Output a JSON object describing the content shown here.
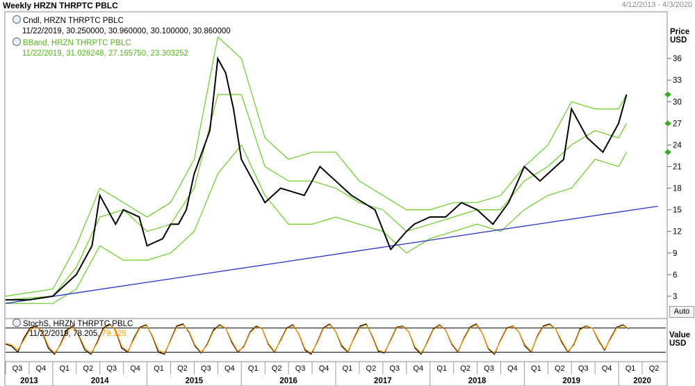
{
  "header": {
    "title": "Weekly HRZN THRPTC PBLC",
    "date_range": "4/12/2013 - 4/3/2020"
  },
  "legend": {
    "candle_label": "Cndl, HRZN THRPTC PBLC",
    "candle_values": "11/22/2019, 30.250000, 30.960000, 30.100000, 30.860000",
    "bband_label": "BBand, HRZN THRPTC PBLC",
    "bband_values": "11/22/2019, 31.028248, 27.165750, 23.303252",
    "stoch_label": "StochS, HRZN THRPTC PBLC",
    "stoch_value_k": "11/22/2019, 78.205,",
    "stoch_value_d": "79.125"
  },
  "price_axis": {
    "title_line1": "Price",
    "title_line2": "USD",
    "auto_label": "Auto"
  },
  "value_axis": {
    "title_line1": "Value",
    "title_line2": "USD"
  },
  "colors": {
    "candle": "#000000",
    "bband": "#66cc22",
    "trendline": "#2233cc",
    "stoch_k": "#000000",
    "stoch_d": "#ff9900",
    "marker": "#33aa22"
  },
  "chart_data": [
    {
      "type": "line",
      "title": "Weekly HRZN THRPTC PBLC",
      "ylabel": "Price USD",
      "ylim": [
        0,
        42
      ],
      "y_ticks": [
        3,
        6,
        9,
        12,
        15,
        18,
        21,
        24,
        27,
        30,
        33,
        36
      ],
      "x_quarter_labels": [
        "Q3",
        "Q4",
        "Q1",
        "Q2",
        "Q3",
        "Q4",
        "Q1",
        "Q2",
        "Q3",
        "Q4",
        "Q1",
        "Q2",
        "Q3",
        "Q4",
        "Q1",
        "Q2",
        "Q3",
        "Q4",
        "Q1",
        "Q2",
        "Q3",
        "Q4",
        "Q1",
        "Q2",
        "Q3",
        "Q4",
        "Q1",
        "Q2"
      ],
      "x_year_labels": [
        "2013",
        "2014",
        "2015",
        "2016",
        "2017",
        "2018",
        "2019",
        "2020"
      ],
      "series": [
        {
          "name": "Cndl",
          "x": [
            "2013-04",
            "2013-07",
            "2013-10",
            "2014-01",
            "2014-03",
            "2014-04",
            "2014-06",
            "2014-07",
            "2014-09",
            "2014-10",
            "2014-12",
            "2015-01",
            "2015-02",
            "2015-03",
            "2015-04",
            "2015-06",
            "2015-07",
            "2015-08",
            "2015-09",
            "2015-10",
            "2015-12",
            "2016-01",
            "2016-03",
            "2016-06",
            "2016-08",
            "2016-10",
            "2016-12",
            "2017-03",
            "2017-05",
            "2017-07",
            "2017-08",
            "2017-10",
            "2017-12",
            "2018-02",
            "2018-04",
            "2018-06",
            "2018-08",
            "2018-10",
            "2018-12",
            "2019-03",
            "2019-04",
            "2019-06",
            "2019-08",
            "2019-10",
            "2019-11"
          ],
          "values": [
            2.5,
            2.5,
            3,
            6,
            10,
            17,
            13,
            15,
            14,
            10,
            11,
            13,
            13,
            15,
            20,
            26,
            36,
            34,
            29,
            22,
            18,
            16,
            18,
            17,
            21,
            19,
            17,
            15,
            9.5,
            12,
            13,
            14,
            14,
            16,
            15,
            13,
            16,
            21,
            19,
            22,
            29,
            25,
            23,
            27,
            31
          ]
        },
        {
          "name": "BBand",
          "x": [
            "2013-04",
            "2013-10",
            "2014-01",
            "2014-04",
            "2014-07",
            "2014-10",
            "2015-01",
            "2015-04",
            "2015-07",
            "2015-10",
            "2016-01",
            "2016-04",
            "2016-07",
            "2016-10",
            "2017-01",
            "2017-04",
            "2017-07",
            "2017-10",
            "2018-01",
            "2018-04",
            "2018-07",
            "2018-10",
            "2019-01",
            "2019-04",
            "2019-07",
            "2019-10",
            "2019-11"
          ],
          "upper": [
            3,
            4,
            10,
            18,
            16,
            14,
            16,
            22,
            39,
            36,
            25,
            22,
            23,
            23,
            19,
            17,
            15,
            15,
            16,
            16,
            17,
            21,
            24,
            30,
            29,
            29,
            31
          ],
          "middle": [
            2.5,
            3,
            7,
            14,
            15,
            12,
            13,
            18,
            31,
            31,
            21,
            19,
            19,
            18,
            16,
            15,
            12,
            13,
            14,
            15,
            15,
            19,
            21,
            24,
            26,
            25,
            27
          ],
          "lower": [
            2,
            2,
            4,
            10,
            8,
            8,
            9,
            12,
            20,
            24,
            17,
            13,
            13,
            14,
            13,
            12,
            9,
            11,
            12,
            13,
            12,
            15,
            17,
            18,
            22,
            21,
            23
          ]
        },
        {
          "name": "Trend",
          "x": [
            "2013-04",
            "2020-03"
          ],
          "values": [
            2,
            15.5
          ]
        }
      ]
    },
    {
      "type": "line",
      "title": "StochS",
      "ylabel": "Value USD",
      "ylim": [
        0,
        100
      ],
      "reference_lines": [
        20,
        80
      ],
      "series": [
        {
          "name": "%K",
          "values": [
            40,
            35,
            20,
            55,
            80,
            85,
            70,
            30,
            15,
            40,
            75,
            85,
            60,
            25,
            15,
            45,
            80,
            90,
            75,
            30,
            20,
            55,
            82,
            88,
            60,
            20,
            15,
            50,
            85,
            90,
            70,
            35,
            18,
            40,
            75,
            88,
            80,
            45,
            20,
            35,
            70,
            85,
            78,
            40,
            20,
            50,
            80,
            88,
            65,
            25,
            15,
            45,
            80,
            90,
            72,
            35,
            20,
            55,
            85,
            90,
            60,
            22,
            18,
            50,
            82,
            85,
            70,
            30,
            15,
            45,
            78,
            88,
            75,
            40,
            20,
            55,
            82,
            90,
            68,
            28,
            15,
            50,
            80,
            85,
            70,
            35,
            20,
            60,
            85,
            90,
            78,
            45,
            20,
            40,
            78,
            85,
            80,
            50,
            25,
            55,
            82,
            88,
            78
          ]
        },
        {
          "name": "%D",
          "values": [
            42,
            38,
            25,
            50,
            75,
            83,
            72,
            35,
            18,
            38,
            70,
            83,
            62,
            30,
            18,
            42,
            76,
            88,
            76,
            35,
            22,
            52,
            80,
            86,
            62,
            25,
            18,
            48,
            82,
            88,
            72,
            38,
            20,
            38,
            72,
            86,
            80,
            48,
            22,
            33,
            68,
            83,
            78,
            42,
            22,
            48,
            78,
            86,
            66,
            28,
            18,
            43,
            78,
            88,
            72,
            38,
            22,
            53,
            82,
            88,
            62,
            25,
            20,
            48,
            80,
            84,
            70,
            33,
            18,
            43,
            76,
            86,
            75,
            42,
            22,
            53,
            80,
            88,
            68,
            30,
            18,
            48,
            78,
            84,
            70,
            38,
            22,
            58,
            83,
            88,
            78,
            48,
            22,
            38,
            75,
            84,
            80,
            52,
            27,
            53,
            80,
            86,
            79
          ]
        }
      ]
    }
  ]
}
